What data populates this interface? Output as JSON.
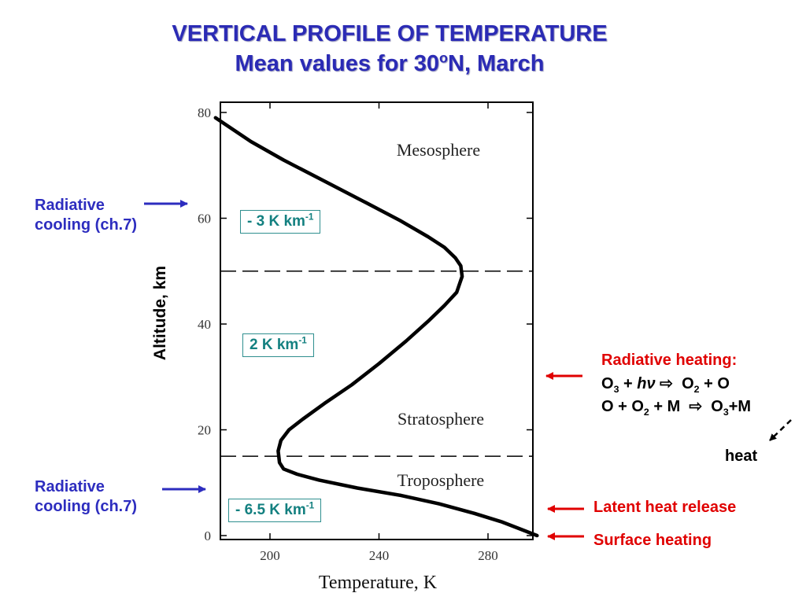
{
  "title": {
    "line1": "VERTICAL PROFILE OF TEMPERATURE",
    "line2_prefix": "Mean values for 30",
    "line2_sup": "o",
    "line2_suffix": "N, March"
  },
  "chart_data": {
    "type": "line",
    "title": "VERTICAL PROFILE OF TEMPERATURE",
    "subtitle": "Mean values for 30oN, March",
    "xlabel": "Temperature, K",
    "ylabel": "Altitude, km",
    "xlim": [
      180,
      300
    ],
    "ylim": [
      0,
      80
    ],
    "xticks": [
      200,
      240,
      280
    ],
    "yticks": [
      0,
      20,
      40,
      60,
      80
    ],
    "grid": false,
    "series": [
      {
        "x": [
          298,
          292,
          285,
          275,
          262,
          248,
          232,
          218,
          210,
          205,
          203.5,
          203,
          204,
          207,
          212,
          220,
          230,
          240,
          250,
          258,
          264,
          268.5,
          270.5,
          270,
          268,
          264,
          258,
          248,
          235,
          220,
          205,
          193,
          180
        ],
        "y": [
          0,
          1.2,
          2.6,
          4.2,
          6,
          7.6,
          9,
          10.5,
          11.6,
          12.6,
          13.8,
          16,
          18,
          20,
          22,
          25,
          28.5,
          32.5,
          36.8,
          40.5,
          43.5,
          46,
          49,
          51,
          52.5,
          54.5,
          56.5,
          59.5,
          63,
          67,
          71,
          74.5,
          79
        ]
      }
    ],
    "boundaries": [
      15,
      50
    ],
    "regions": [
      "Mesosphere",
      "Stratosphere",
      "Troposphere"
    ]
  },
  "lapse": {
    "meso": {
      "pre": "- 3 K km",
      "sup": "-1"
    },
    "strato": {
      "pre": "2 K km",
      "sup": "-1"
    },
    "tropo": {
      "pre": "- 6.5 K km",
      "sup": "-1"
    }
  },
  "annotations": {
    "cooling_upper": {
      "line1": "Radiative",
      "line2": "cooling (ch.7)"
    },
    "cooling_lower": {
      "line1": "Radiative",
      "line2": "cooling (ch.7)"
    },
    "heating": {
      "heading": "Radiative heating:",
      "r1_a": "O",
      "r1_a_sub": "3",
      "r1_b": " + ",
      "r1_h": "hν",
      "r1_arrow": "⇨",
      "r1_c": "O",
      "r1_c_sub": "2",
      "r1_d": " + O",
      "r2_a": "O + O",
      "r2_a_sub": "2",
      "r2_b": " + M ",
      "r2_arrow": "⇨",
      "r2_c": "O",
      "r2_c_sub": "3",
      "r2_d": "+M",
      "heat": "heat"
    },
    "latent": "Latent heat release",
    "surface": "Surface heating"
  },
  "colors": {
    "title": "#2b2bb5",
    "blue_arrow": "#2d2dbf",
    "red_arrow": "#e00000",
    "box_border": "#2f8f8f",
    "box_text": "#138080"
  }
}
